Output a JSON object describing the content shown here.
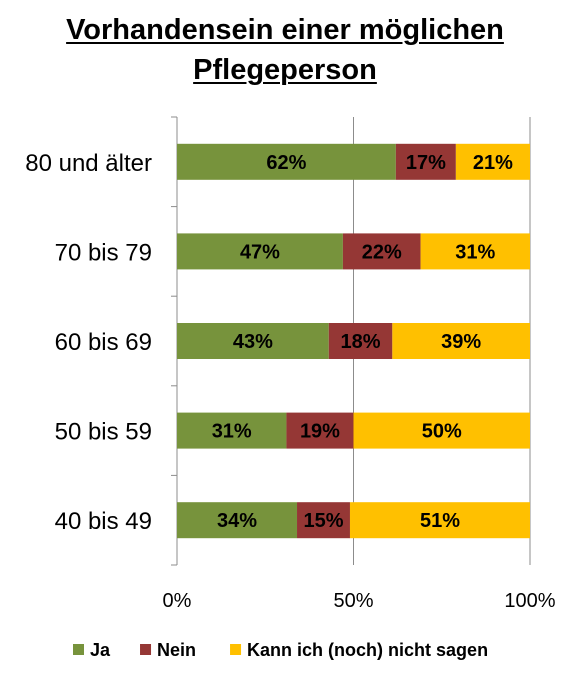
{
  "chart_data": {
    "type": "bar",
    "stacked": true,
    "orientation": "horizontal",
    "title_lines": [
      "Vorhandensein einer möglichen",
      "Pflegeperson"
    ],
    "categories": [
      "80 und älter",
      "70 bis 79",
      "60 bis 69",
      "50 bis 59",
      "40 bis 49"
    ],
    "series": [
      {
        "name": "Ja",
        "color": "#77933C",
        "values": [
          62,
          47,
          43,
          31,
          34
        ],
        "labels": [
          "62%",
          "47%",
          "43%",
          "31%",
          "34%"
        ]
      },
      {
        "name": "Nein",
        "color": "#953735",
        "values": [
          17,
          22,
          18,
          19,
          15
        ],
        "labels": [
          "17%",
          "22%",
          "18%",
          "19%",
          "15%"
        ]
      },
      {
        "name": "Kann ich (noch) nicht sagen",
        "color": "#FFC000",
        "values": [
          21,
          31,
          39,
          50,
          51
        ],
        "labels": [
          "21%",
          "31%",
          "39%",
          "50%",
          "51%"
        ]
      }
    ],
    "xlim": [
      0,
      100
    ],
    "x_ticks": [
      0,
      50,
      100
    ],
    "x_tick_labels": [
      "0%",
      "50%",
      "100%"
    ],
    "grid": true,
    "legend": "bottom"
  }
}
